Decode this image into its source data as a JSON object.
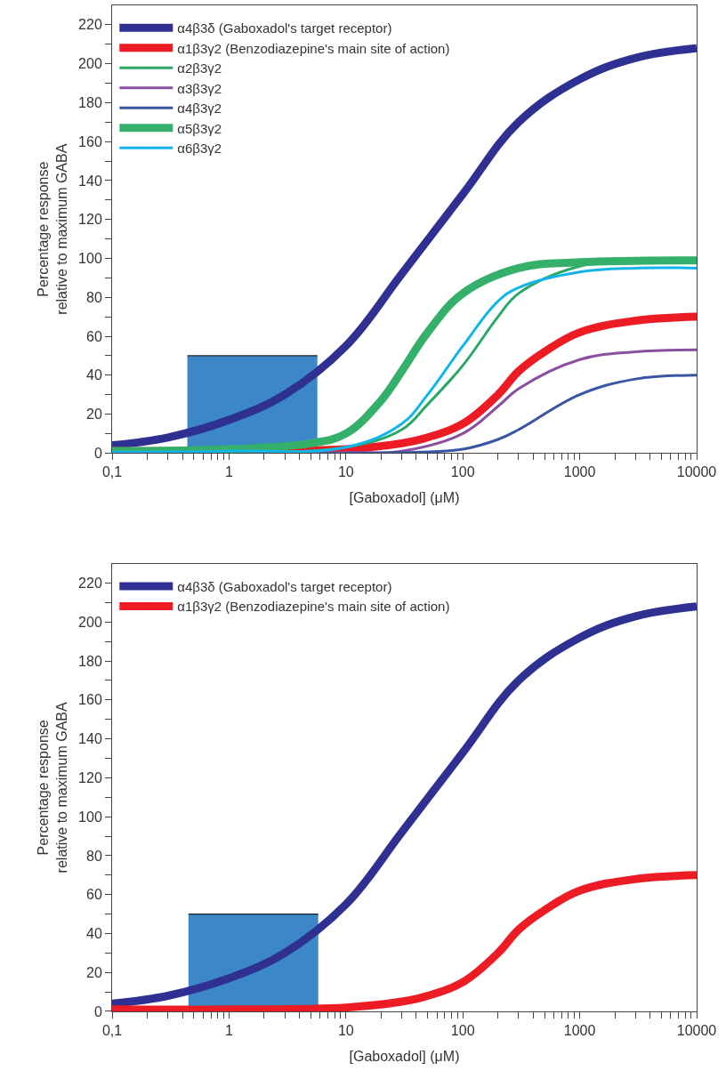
{
  "chart_data": [
    {
      "type": "line",
      "xlabel": "[Gaboxadol] (μM)",
      "ylabel": "Percentage response\nrelative to maximum GABA",
      "log": "x",
      "legend": "top left",
      "marker": "none",
      "xlim": [
        0.1,
        10000
      ],
      "ylim": [
        0,
        230
      ],
      "xticks": [
        {
          "value": 0.1,
          "label": "0,1"
        },
        {
          "value": 0.2,
          "label": null
        },
        {
          "value": 0.3,
          "label": null
        },
        {
          "value": 0.4,
          "label": null
        },
        {
          "value": 0.5,
          "label": null
        },
        {
          "value": 0.6,
          "label": null
        },
        {
          "value": 0.7,
          "label": null
        },
        {
          "value": 0.8,
          "label": null
        },
        {
          "value": 0.9,
          "label": null
        },
        1,
        {
          "value": 2,
          "label": null
        },
        {
          "value": 3,
          "label": null
        },
        {
          "value": 4,
          "label": null
        },
        {
          "value": 5,
          "label": null
        },
        {
          "value": 6,
          "label": null
        },
        {
          "value": 7,
          "label": null
        },
        {
          "value": 8,
          "label": null
        },
        {
          "value": 9,
          "label": null
        },
        10,
        {
          "value": 20,
          "label": null
        },
        {
          "value": 30,
          "label": null
        },
        {
          "value": 40,
          "label": null
        },
        {
          "value": 50,
          "label": null
        },
        {
          "value": 60,
          "label": null
        },
        {
          "value": 70,
          "label": null
        },
        {
          "value": 80,
          "label": null
        },
        {
          "value": 90,
          "label": null
        },
        100,
        {
          "value": 200,
          "label": null
        },
        {
          "value": 300,
          "label": null
        },
        {
          "value": 400,
          "label": null
        },
        {
          "value": 500,
          "label": null
        },
        {
          "value": 600,
          "label": null
        },
        {
          "value": 700,
          "label": null
        },
        {
          "value": 800,
          "label": null
        },
        {
          "value": 900,
          "label": null
        },
        1000,
        {
          "value": 2000,
          "label": null
        },
        {
          "value": 3000,
          "label": null
        },
        {
          "value": 4000,
          "label": null
        },
        {
          "value": 5000,
          "label": null
        },
        {
          "value": 6000,
          "label": null
        },
        {
          "value": 7000,
          "label": null
        },
        {
          "value": 8000,
          "label": null
        },
        {
          "value": 9000,
          "label": null
        },
        10000
      ],
      "yticks": [
        0,
        {
          "value": 10,
          "label": null
        },
        20,
        {
          "value": 30,
          "label": null
        },
        40,
        {
          "value": 50,
          "label": null
        },
        60,
        {
          "value": 70,
          "label": null
        },
        80,
        {
          "value": 90,
          "label": null
        },
        100,
        {
          "value": 110,
          "label": null
        },
        120,
        {
          "value": 130,
          "label": null
        },
        140,
        {
          "value": 150,
          "label": null
        },
        160,
        {
          "value": 170,
          "label": null
        },
        180,
        {
          "value": 190,
          "label": null
        },
        200,
        {
          "value": 210,
          "label": null
        },
        220
      ],
      "series": [
        {
          "type": "area",
          "color": "#3b87c8",
          "x": [
            0.44,
            5.7
          ],
          "values": [
            50,
            50
          ]
        },
        {
          "name": "α4β3δ (Gaboxadol's target receptor)",
          "color": "#2e3192",
          "x": [
            0.1,
            0.3,
            1,
            3,
            10,
            30,
            100,
            300,
            1000,
            3000,
            10000
          ],
          "values": [
            4,
            8,
            17,
            30,
            55,
            92,
            133,
            170,
            192,
            203,
            208
          ]
        },
        {
          "name": "α1β3γ2 (Benzodiazepine's main site of action)",
          "color": "#ed1c24",
          "x": [
            0.1,
            1,
            10,
            30,
            50,
            100,
            200,
            300,
            500,
            1000,
            3000,
            10000
          ],
          "values": [
            1,
            1,
            2,
            5,
            8,
            15,
            30,
            42,
            52,
            62,
            68,
            70
          ]
        },
        {
          "name": "α2β3γ2",
          "color": "#2aa866",
          "x": [
            0.1,
            1,
            10,
            30,
            50,
            100,
            200,
            300,
            1000,
            3000,
            10000
          ],
          "values": [
            0.5,
            0.5,
            3,
            12,
            25,
            45,
            70,
            82,
            96,
            99,
            99
          ]
        },
        {
          "name": "α3β3γ2",
          "color": "#8a4fa0",
          "x": [
            0.1,
            10,
            30,
            100,
            200,
            300,
            1000,
            3000,
            10000
          ],
          "values": [
            0,
            0.3,
            1,
            10,
            24,
            33,
            48,
            52,
            53
          ]
        },
        {
          "name": "α4β3γ2",
          "color": "#3955a3",
          "x": [
            0.1,
            30,
            100,
            200,
            300,
            1000,
            3000,
            10000
          ],
          "values": [
            0,
            0.2,
            2,
            7,
            12,
            30,
            38,
            40
          ]
        },
        {
          "name": "α5β3γ2",
          "color": "#35b06a",
          "x": [
            0.1,
            1,
            5,
            10,
            20,
            30,
            50,
            100,
            300,
            1000,
            10000
          ],
          "values": [
            1,
            2,
            5,
            10,
            27,
            42,
            62,
            82,
            95,
            98,
            99
          ]
        },
        {
          "name": "α6β3γ2",
          "color": "#13b4e9",
          "x": [
            0.1,
            1,
            10,
            30,
            50,
            100,
            200,
            300,
            1000,
            3000,
            10000
          ],
          "values": [
            0.5,
            1,
            3,
            15,
            30,
            55,
            78,
            85,
            93,
            95,
            95
          ]
        }
      ]
    },
    {
      "type": "line",
      "xlabel": "[Gaboxadol] (μM)",
      "ylabel": "Percentage response\nrelative to maximum GABA",
      "log": "x",
      "legend": "top left",
      "marker": "none",
      "xlim": [
        0.1,
        10000
      ],
      "ylim": [
        0,
        230
      ],
      "xticks": [
        {
          "value": 0.1,
          "label": "0,1"
        },
        {
          "value": 0.2,
          "label": null
        },
        {
          "value": 0.3,
          "label": null
        },
        {
          "value": 0.4,
          "label": null
        },
        {
          "value": 0.5,
          "label": null
        },
        {
          "value": 0.6,
          "label": null
        },
        {
          "value": 0.7,
          "label": null
        },
        {
          "value": 0.8,
          "label": null
        },
        {
          "value": 0.9,
          "label": null
        },
        1,
        {
          "value": 2,
          "label": null
        },
        {
          "value": 3,
          "label": null
        },
        {
          "value": 4,
          "label": null
        },
        {
          "value": 5,
          "label": null
        },
        {
          "value": 6,
          "label": null
        },
        {
          "value": 7,
          "label": null
        },
        {
          "value": 8,
          "label": null
        },
        {
          "value": 9,
          "label": null
        },
        10,
        {
          "value": 20,
          "label": null
        },
        {
          "value": 30,
          "label": null
        },
        {
          "value": 40,
          "label": null
        },
        {
          "value": 50,
          "label": null
        },
        {
          "value": 60,
          "label": null
        },
        {
          "value": 70,
          "label": null
        },
        {
          "value": 80,
          "label": null
        },
        {
          "value": 90,
          "label": null
        },
        100,
        {
          "value": 200,
          "label": null
        },
        {
          "value": 300,
          "label": null
        },
        {
          "value": 400,
          "label": null
        },
        {
          "value": 500,
          "label": null
        },
        {
          "value": 600,
          "label": null
        },
        {
          "value": 700,
          "label": null
        },
        {
          "value": 800,
          "label": null
        },
        {
          "value": 900,
          "label": null
        },
        1000,
        {
          "value": 2000,
          "label": null
        },
        {
          "value": 3000,
          "label": null
        },
        {
          "value": 4000,
          "label": null
        },
        {
          "value": 5000,
          "label": null
        },
        {
          "value": 6000,
          "label": null
        },
        {
          "value": 7000,
          "label": null
        },
        {
          "value": 8000,
          "label": null
        },
        {
          "value": 9000,
          "label": null
        },
        10000
      ],
      "yticks": [
        0,
        {
          "value": 10,
          "label": null
        },
        20,
        {
          "value": 30,
          "label": null
        },
        40,
        {
          "value": 50,
          "label": null
        },
        60,
        {
          "value": 70,
          "label": null
        },
        80,
        {
          "value": 90,
          "label": null
        },
        100,
        {
          "value": 110,
          "label": null
        },
        120,
        {
          "value": 130,
          "label": null
        },
        140,
        {
          "value": 150,
          "label": null
        },
        160,
        {
          "value": 170,
          "label": null
        },
        180,
        {
          "value": 190,
          "label": null
        },
        200,
        {
          "value": 210,
          "label": null
        },
        220
      ],
      "series": [
        {
          "type": "area",
          "color": "#3b87c8",
          "x": [
            0.45,
            5.8
          ],
          "values": [
            50,
            50
          ]
        },
        {
          "name": "α4β3δ (Gaboxadol's target receptor)",
          "color": "#2e3192",
          "x": [
            0.1,
            0.3,
            1,
            3,
            10,
            30,
            100,
            300,
            1000,
            3000,
            10000
          ],
          "values": [
            4,
            8,
            17,
            30,
            55,
            92,
            133,
            170,
            192,
            203,
            208
          ]
        },
        {
          "name": "α1β3γ2 (Benzodiazepine's main site of action)",
          "color": "#ed1c24",
          "x": [
            0.1,
            1,
            10,
            30,
            50,
            100,
            200,
            300,
            500,
            1000,
            3000,
            10000
          ],
          "values": [
            1,
            1,
            2,
            5,
            8,
            15,
            30,
            42,
            52,
            62,
            68,
            70
          ]
        }
      ]
    }
  ]
}
